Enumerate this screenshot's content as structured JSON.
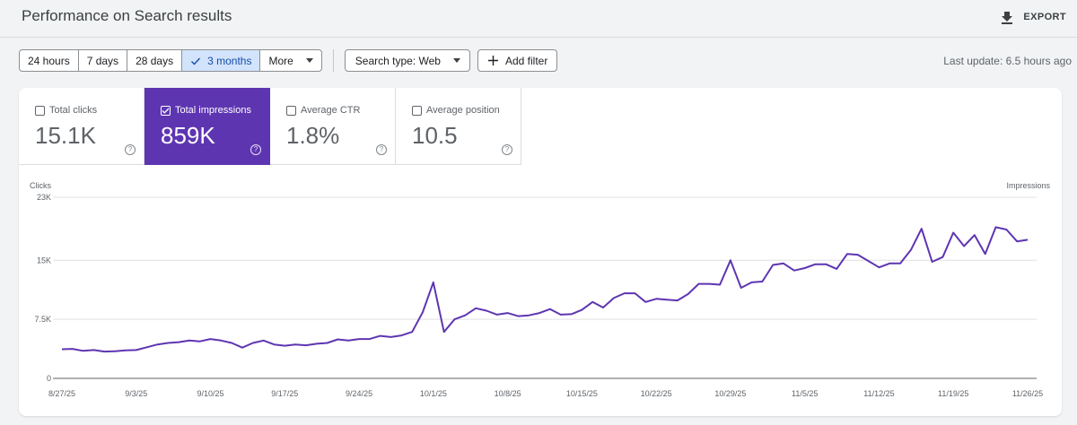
{
  "header": {
    "title": "Performance on Search results",
    "export_label": "EXPORT"
  },
  "filters": {
    "ranges": [
      {
        "label": "24 hours",
        "active": false
      },
      {
        "label": "7 days",
        "active": false
      },
      {
        "label": "28 days",
        "active": false
      },
      {
        "label": "3 months",
        "active": true
      },
      {
        "label": "More",
        "active": false
      }
    ],
    "search_type_label": "Search type: Web",
    "add_filter_label": "Add filter",
    "last_update": "Last update: 6.5 hours ago"
  },
  "metrics": [
    {
      "label": "Total clicks",
      "value": "15.1K",
      "checked": false
    },
    {
      "label": "Total impressions",
      "value": "859K",
      "checked": true
    },
    {
      "label": "Average CTR",
      "value": "1.8%",
      "checked": false
    },
    {
      "label": "Average position",
      "value": "10.5",
      "checked": false
    }
  ],
  "colors": {
    "accent": "#5e35b1",
    "line": "#5e35b1",
    "active_range_bg": "#d2e3fc"
  },
  "chart_data": {
    "type": "line",
    "left_axis_label": "Clicks",
    "right_axis_label": "Impressions",
    "y_ticks": [
      0,
      7500,
      15000,
      23000
    ],
    "y_tick_labels": [
      "0",
      "7.5K",
      "15K",
      "23K"
    ],
    "ylim": [
      0,
      23000
    ],
    "grid": true,
    "x_tick_labels": [
      "8/27/25",
      "9/3/25",
      "9/10/25",
      "9/17/25",
      "9/24/25",
      "10/1/25",
      "10/8/25",
      "10/15/25",
      "10/22/25",
      "10/29/25",
      "11/5/25",
      "11/12/25",
      "11/19/25",
      "11/26/25"
    ],
    "series": [
      {
        "name": "Impressions",
        "values": [
          3700,
          3750,
          3500,
          3600,
          3400,
          3450,
          3550,
          3600,
          3950,
          4300,
          4500,
          4600,
          4800,
          4700,
          5000,
          4800,
          4500,
          3900,
          4500,
          4800,
          4300,
          4150,
          4300,
          4200,
          4400,
          4500,
          4950,
          4800,
          5000,
          5000,
          5400,
          5250,
          5450,
          5900,
          8400,
          12200,
          5900,
          7500,
          8000,
          8900,
          8600,
          8100,
          8300,
          7900,
          8000,
          8300,
          8800,
          8100,
          8150,
          8700,
          9700,
          9000,
          10200,
          10800,
          10800,
          9700,
          10100,
          10000,
          9900,
          10700,
          12000,
          12000,
          11900,
          15000,
          11500,
          12200,
          12300,
          14400,
          14600,
          13700,
          14000,
          14500,
          14500,
          13900,
          15800,
          15700,
          14900,
          14100,
          14600,
          14600,
          16300,
          19000,
          14800,
          15400,
          18500,
          16800,
          18200,
          15800,
          19200,
          18900,
          17400,
          17600
        ]
      }
    ]
  }
}
